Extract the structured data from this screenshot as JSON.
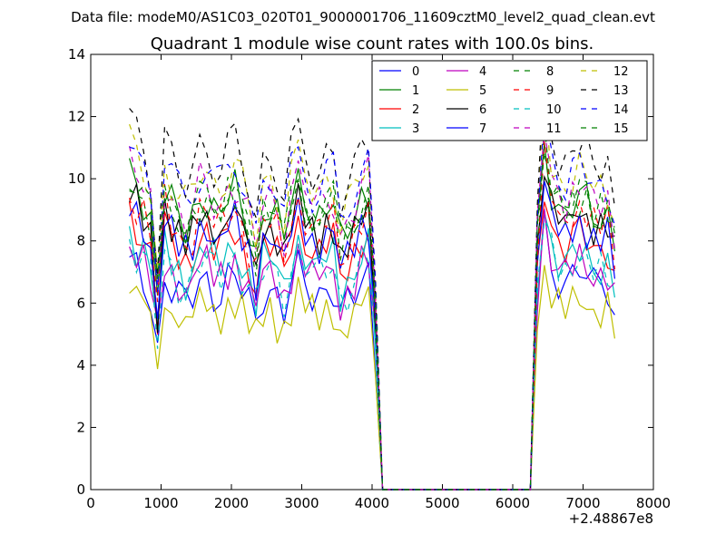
{
  "chart_data": {
    "type": "line",
    "suptitle": "Data file: modeM0/AS1C03_020T01_9000001706_11609cztM0_level2_quad_clean.evt",
    "title": "Quadrant 1 module wise count rates with 100.0s bins.",
    "xlabel": "",
    "ylabel": "",
    "x_offset_label": "+2.48867e8",
    "xlim": [
      0,
      8000
    ],
    "ylim": [
      0,
      14
    ],
    "x_ticks": [
      0,
      1000,
      2000,
      3000,
      4000,
      5000,
      6000,
      7000,
      8000
    ],
    "y_ticks": [
      0,
      2,
      4,
      6,
      8,
      10,
      12,
      14
    ],
    "x_tick_labels": [
      "0",
      "1000",
      "2000",
      "3000",
      "4000",
      "5000",
      "6000",
      "7000",
      "8000"
    ],
    "y_tick_labels": [
      "0",
      "2",
      "4",
      "6",
      "8",
      "10",
      "12",
      "14"
    ],
    "grid": false,
    "legend_position": "top-right",
    "legend_columns": 4,
    "segments": {
      "seg1_start": 550,
      "seg1_step": 100,
      "seg1_count": 36,
      "gap_start": 4150,
      "gap_end": 6250,
      "seg2_start": 6350,
      "seg2_step": 100,
      "seg2_count": 12
    },
    "series": [
      {
        "name": "0",
        "color": "#0000ff",
        "dashed": false,
        "base1": 6.4,
        "base2": 6.9
      },
      {
        "name": "1",
        "color": "#008000",
        "dashed": false,
        "base1": 9.0,
        "base2": 9.2
      },
      {
        "name": "2",
        "color": "#ff0000",
        "dashed": false,
        "base1": 7.8,
        "base2": 8.1
      },
      {
        "name": "3",
        "color": "#00bfbf",
        "dashed": false,
        "base1": 7.3,
        "base2": 7.5
      },
      {
        "name": "4",
        "color": "#bf00bf",
        "dashed": false,
        "base1": 6.9,
        "base2": 7.2
      },
      {
        "name": "5",
        "color": "#bfbf00",
        "dashed": false,
        "base1": 5.7,
        "base2": 6.0
      },
      {
        "name": "6",
        "color": "#000000",
        "dashed": false,
        "base1": 8.4,
        "base2": 8.8
      },
      {
        "name": "7",
        "color": "#0000ff",
        "dashed": false,
        "base1": 8.1,
        "base2": 8.4
      },
      {
        "name": "8",
        "color": "#008000",
        "dashed": true,
        "base1": 8.9,
        "base2": 9.3
      },
      {
        "name": "9",
        "color": "#ff0000",
        "dashed": true,
        "base1": 8.5,
        "base2": 8.9
      },
      {
        "name": "10",
        "color": "#00bfbf",
        "dashed": true,
        "base1": 7.0,
        "base2": 7.3
      },
      {
        "name": "11",
        "color": "#bf00bf",
        "dashed": true,
        "base1": 9.3,
        "base2": 9.6
      },
      {
        "name": "12",
        "color": "#bfbf00",
        "dashed": true,
        "base1": 9.8,
        "base2": 10.1
      },
      {
        "name": "13",
        "color": "#000000",
        "dashed": true,
        "base1": 10.5,
        "base2": 10.9
      },
      {
        "name": "14",
        "color": "#0000ff",
        "dashed": true,
        "base1": 9.9,
        "base2": 10.2
      },
      {
        "name": "15",
        "color": "#008000",
        "dashed": true,
        "base1": 9.1,
        "base2": 9.4
      }
    ]
  }
}
